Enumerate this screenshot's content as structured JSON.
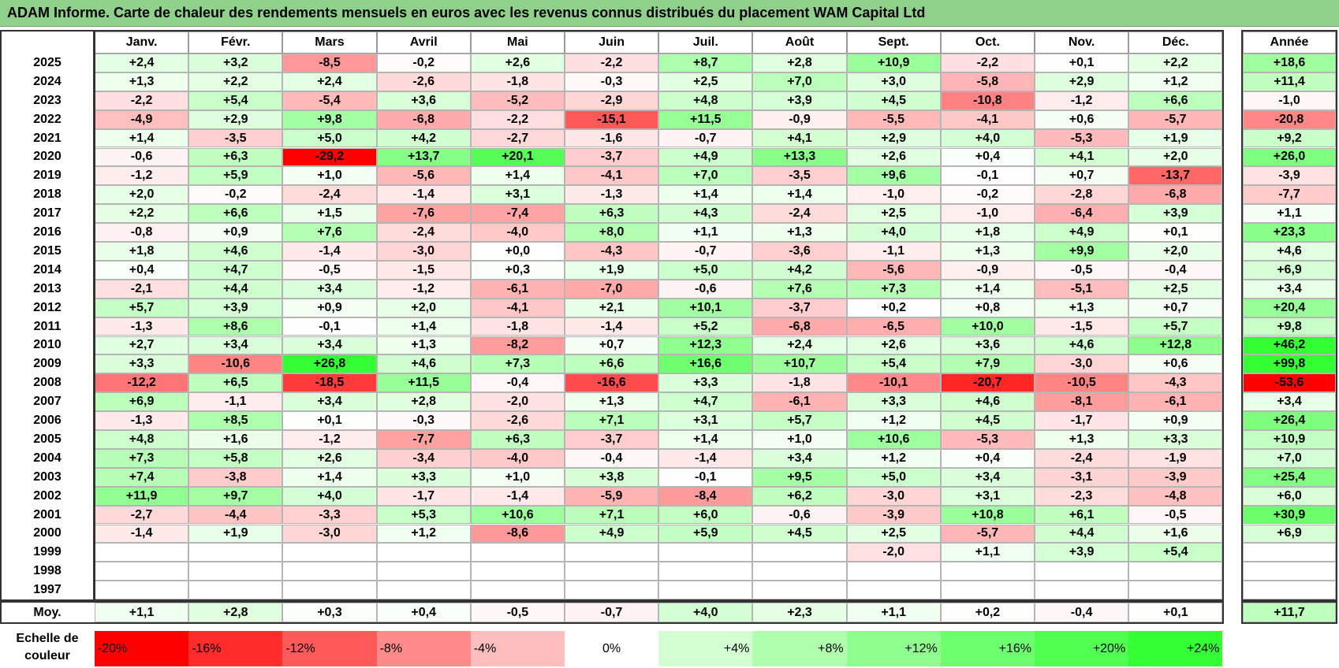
{
  "title": "ADAM Informe. Carte de chaleur des rendements mensuels en euros avec les revenus connus distribués du placement WAM Capital Ltd",
  "chart_data": {
    "type": "heatmap",
    "columns": [
      "Janv.",
      "Févr.",
      "Mars",
      "Avril",
      "Mai",
      "Juin",
      "Juil.",
      "Août",
      "Sept.",
      "Oct.",
      "Nov.",
      "Déc."
    ],
    "year_column_label": "Année",
    "avg_row_label": "Moy.",
    "rows": [
      {
        "year": "2025",
        "values": [
          "+2,4",
          "+3,2",
          "-8,5",
          "-0,2",
          "+2,6",
          "-2,2",
          "+8,7",
          "+2,8",
          "+10,9",
          "-2,2",
          "+0,1",
          "+2,2"
        ],
        "annual": "+18,6"
      },
      {
        "year": "2024",
        "values": [
          "+1,3",
          "+2,2",
          "+2,4",
          "-2,6",
          "-1,8",
          "-0,3",
          "+2,5",
          "+7,0",
          "+3,0",
          "-5,8",
          "+2,9",
          "+1,2"
        ],
        "annual": "+11,4"
      },
      {
        "year": "2023",
        "values": [
          "-2,2",
          "+5,4",
          "-5,4",
          "+3,6",
          "-5,2",
          "-2,9",
          "+4,8",
          "+3,9",
          "+4,5",
          "-10,8",
          "-1,2",
          "+6,6"
        ],
        "annual": "-1,0"
      },
      {
        "year": "2022",
        "values": [
          "-4,9",
          "+2,9",
          "+9,8",
          "-6,8",
          "-2,2",
          "-15,1",
          "+11,5",
          "-0,9",
          "-5,5",
          "-4,1",
          "+0,6",
          "-5,7"
        ],
        "annual": "-20,8"
      },
      {
        "year": "2021",
        "values": [
          "+1,4",
          "-3,5",
          "+5,0",
          "+4,2",
          "-2,7",
          "-1,6",
          "-0,7",
          "+4,1",
          "+2,9",
          "+4,0",
          "-5,3",
          "+1,9"
        ],
        "annual": "+9,2"
      },
      {
        "year": "2020",
        "values": [
          "-0,6",
          "+6,3",
          "-29,2",
          "+13,7",
          "+20,1",
          "-3,7",
          "+4,9",
          "+13,3",
          "+2,6",
          "+0,4",
          "+4,1",
          "+2,0"
        ],
        "annual": "+26,0"
      },
      {
        "year": "2019",
        "values": [
          "-1,2",
          "+5,9",
          "+1,0",
          "-5,6",
          "+1,4",
          "-4,1",
          "+7,0",
          "-3,5",
          "+9,6",
          "-0,1",
          "+0,7",
          "-13,7"
        ],
        "annual": "-3,9"
      },
      {
        "year": "2018",
        "values": [
          "+2,0",
          "-0,2",
          "-2,4",
          "-1,4",
          "+3,1",
          "-1,3",
          "+1,4",
          "+1,4",
          "-1,0",
          "-0,2",
          "-2,8",
          "-6,8"
        ],
        "annual": "-7,7"
      },
      {
        "year": "2017",
        "values": [
          "+2,2",
          "+6,6",
          "+1,5",
          "-7,6",
          "-7,4",
          "+6,3",
          "+4,3",
          "-2,4",
          "+2,5",
          "-1,0",
          "-6,4",
          "+3,9"
        ],
        "annual": "+1,1"
      },
      {
        "year": "2016",
        "values": [
          "-0,8",
          "+0,9",
          "+7,6",
          "-2,4",
          "-4,0",
          "+8,0",
          "+1,1",
          "+1,3",
          "+4,0",
          "+1,8",
          "+4,9",
          "+0,1"
        ],
        "annual": "+23,3"
      },
      {
        "year": "2015",
        "values": [
          "+1,8",
          "+4,6",
          "-1,4",
          "-3,0",
          "+0,0",
          "-4,3",
          "-0,7",
          "-3,6",
          "-1,1",
          "+1,3",
          "+9,9",
          "+2,0"
        ],
        "annual": "+4,6"
      },
      {
        "year": "2014",
        "values": [
          "+0,4",
          "+4,7",
          "-0,5",
          "-1,5",
          "+0,3",
          "+1,9",
          "+5,0",
          "+4,2",
          "-5,6",
          "-0,9",
          "-0,5",
          "-0,4"
        ],
        "annual": "+6,9"
      },
      {
        "year": "2013",
        "values": [
          "-2,1",
          "+4,4",
          "+3,4",
          "-1,2",
          "-6,1",
          "-7,0",
          "-0,6",
          "+7,6",
          "+7,3",
          "+1,4",
          "-5,1",
          "+2,5"
        ],
        "annual": "+3,4"
      },
      {
        "year": "2012",
        "values": [
          "+5,7",
          "+3,9",
          "+0,9",
          "+2,0",
          "-4,1",
          "+2,1",
          "+10,1",
          "-3,7",
          "+0,2",
          "+0,8",
          "+1,3",
          "+0,7"
        ],
        "annual": "+20,4"
      },
      {
        "year": "2011",
        "values": [
          "-1,3",
          "+8,6",
          "-0,1",
          "+1,4",
          "-1,8",
          "-1,4",
          "+5,2",
          "-6,8",
          "-6,5",
          "+10,0",
          "-1,5",
          "+5,7"
        ],
        "annual": "+9,8"
      },
      {
        "year": "2010",
        "values": [
          "+2,7",
          "+3,4",
          "+3,4",
          "+1,3",
          "-8,2",
          "+0,7",
          "+12,3",
          "+2,4",
          "+2,6",
          "+3,6",
          "+4,6",
          "+12,8"
        ],
        "annual": "+46,2"
      },
      {
        "year": "2009",
        "values": [
          "+3,3",
          "-10,6",
          "+26,8",
          "+4,6",
          "+7,3",
          "+6,6",
          "+16,6",
          "+10,7",
          "+5,4",
          "+7,9",
          "-3,0",
          "+0,6"
        ],
        "annual": "+99,8"
      },
      {
        "year": "2008",
        "values": [
          "-12,2",
          "+6,5",
          "-18,5",
          "+11,5",
          "-0,4",
          "-16,6",
          "+3,3",
          "-1,8",
          "-10,1",
          "-20,7",
          "-10,5",
          "-4,3"
        ],
        "annual": "-53,6"
      },
      {
        "year": "2007",
        "values": [
          "+6,9",
          "-1,1",
          "+3,4",
          "+2,8",
          "-2,0",
          "+1,3",
          "+4,7",
          "-6,1",
          "+3,3",
          "+4,6",
          "-8,1",
          "-6,1"
        ],
        "annual": "+3,4"
      },
      {
        "year": "2006",
        "values": [
          "-1,3",
          "+8,5",
          "+0,1",
          "-0,3",
          "-2,6",
          "+7,1",
          "+3,1",
          "+5,7",
          "+1,2",
          "+4,5",
          "-1,7",
          "+0,9"
        ],
        "annual": "+26,4"
      },
      {
        "year": "2005",
        "values": [
          "+4,8",
          "+1,6",
          "-1,2",
          "-7,7",
          "+6,3",
          "-3,7",
          "+1,4",
          "+1,0",
          "+10,6",
          "-5,3",
          "+1,3",
          "+3,3"
        ],
        "annual": "+10,9"
      },
      {
        "year": "2004",
        "values": [
          "+7,3",
          "+5,8",
          "+2,6",
          "-3,4",
          "-4,0",
          "-0,4",
          "-1,4",
          "+3,4",
          "+1,2",
          "+0,4",
          "-2,4",
          "-1,9"
        ],
        "annual": "+7,0"
      },
      {
        "year": "2003",
        "values": [
          "+7,4",
          "-3,8",
          "+1,4",
          "+3,3",
          "+1,0",
          "+3,8",
          "-0,1",
          "+9,5",
          "+5,0",
          "+3,4",
          "-3,1",
          "-3,9"
        ],
        "annual": "+25,4"
      },
      {
        "year": "2002",
        "values": [
          "+11,9",
          "+9,7",
          "+4,0",
          "-1,7",
          "-1,4",
          "-5,9",
          "-8,4",
          "+6,2",
          "-3,0",
          "+3,1",
          "-2,3",
          "-4,8"
        ],
        "annual": "+6,0"
      },
      {
        "year": "2001",
        "values": [
          "-2,7",
          "-4,4",
          "-3,3",
          "+5,3",
          "+10,6",
          "+7,1",
          "+6,0",
          "-0,6",
          "-3,9",
          "+10,8",
          "+6,1",
          "-0,5"
        ],
        "annual": "+30,9"
      },
      {
        "year": "2000",
        "values": [
          "-1,4",
          "+1,9",
          "-3,0",
          "+1,2",
          "-8,6",
          "+4,9",
          "+5,9",
          "+4,5",
          "+2,5",
          "-5,7",
          "+4,4",
          "+1,6"
        ],
        "annual": "+6,9"
      },
      {
        "year": "1999",
        "values": [
          "",
          "",
          "",
          "",
          "",
          "",
          "",
          "",
          "-2,0",
          "+1,1",
          "+3,9",
          "+5,4"
        ],
        "annual": ""
      },
      {
        "year": "1998",
        "values": [
          "",
          "",
          "",
          "",
          "",
          "",
          "",
          "",
          "",
          "",
          "",
          ""
        ],
        "annual": ""
      },
      {
        "year": "1997",
        "values": [
          "",
          "",
          "",
          "",
          "",
          "",
          "",
          "",
          "",
          "",
          "",
          ""
        ],
        "annual": ""
      }
    ],
    "averages": [
      "+1,1",
      "+2,8",
      "+0,3",
      "+0,4",
      "-0,5",
      "-0,7",
      "+4,0",
      "+2,3",
      "+1,1",
      "+0,2",
      "-0,4",
      "+0,1"
    ],
    "average_annual": "+11,7",
    "color_scale": {
      "label_line1": "Echelle de",
      "label_line2": "couleur",
      "stops": [
        "-20%",
        "-16%",
        "-12%",
        "-8%",
        "-4%",
        "0%",
        "+4%",
        "+8%",
        "+12%",
        "+16%",
        "+20%",
        "+24%"
      ]
    },
    "colors": {
      "negative_max": "#ff0000",
      "neutral": "#ffffff",
      "positive_max": "#33ff33"
    }
  }
}
